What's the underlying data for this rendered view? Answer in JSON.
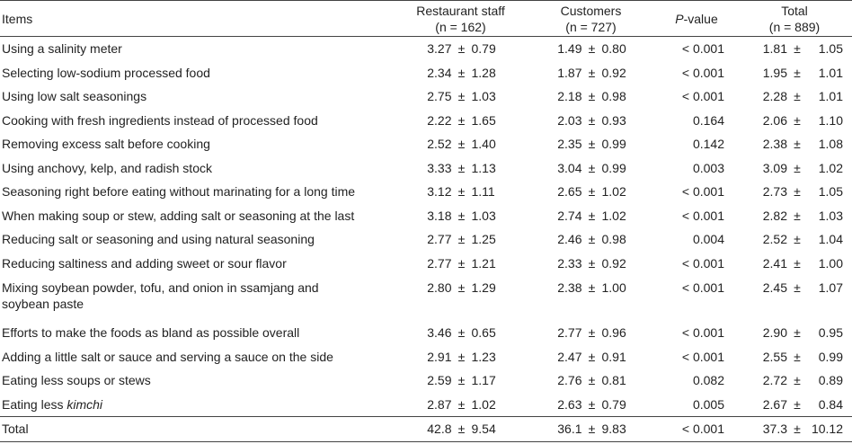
{
  "header": {
    "items": "Items",
    "staff_line1": "Restaurant staff",
    "staff_line2": "(n = 162)",
    "cust_line1": "Customers",
    "cust_line2": "(n = 727)",
    "p_label": "P",
    "p_suffix": "-value",
    "total_line1": "Total",
    "total_line2": "(n = 889)"
  },
  "pm": "±",
  "rows": [
    {
      "item": "Using a salinity meter",
      "staff_m": "3.27",
      "staff_s": "0.79",
      "cust_m": "1.49",
      "cust_s": "0.80",
      "p": "< 0.001",
      "tot_m": "1.81",
      "tot_s": "1.05"
    },
    {
      "item": "Selecting low-sodium processed food",
      "staff_m": "2.34",
      "staff_s": "1.28",
      "cust_m": "1.87",
      "cust_s": "0.92",
      "p": "< 0.001",
      "tot_m": "1.95",
      "tot_s": "1.01"
    },
    {
      "item": "Using low salt seasonings",
      "staff_m": "2.75",
      "staff_s": "1.03",
      "cust_m": "2.18",
      "cust_s": "0.98",
      "p": "< 0.001",
      "tot_m": "2.28",
      "tot_s": "1.01"
    },
    {
      "item": "Cooking with fresh ingredients instead of processed food",
      "staff_m": "2.22",
      "staff_s": "1.65",
      "cust_m": "2.03",
      "cust_s": "0.93",
      "p": "0.164",
      "tot_m": "2.06",
      "tot_s": "1.10"
    },
    {
      "item": "Removing excess salt before cooking",
      "staff_m": "2.52",
      "staff_s": "1.40",
      "cust_m": "2.35",
      "cust_s": "0.99",
      "p": "0.142",
      "tot_m": "2.38",
      "tot_s": "1.08"
    },
    {
      "item": "Using anchovy, kelp, and radish stock",
      "staff_m": "3.33",
      "staff_s": "1.13",
      "cust_m": "3.04",
      "cust_s": "0.99",
      "p": "0.003",
      "tot_m": "3.09",
      "tot_s": "1.02"
    },
    {
      "item": "Seasoning right before eating without marinating for a long time",
      "staff_m": "3.12",
      "staff_s": "1.11",
      "cust_m": "2.65",
      "cust_s": "1.02",
      "p": "< 0.001",
      "tot_m": "2.73",
      "tot_s": "1.05"
    },
    {
      "item": "When making soup or stew, adding salt or seasoning at the last",
      "staff_m": "3.18",
      "staff_s": "1.03",
      "cust_m": "2.74",
      "cust_s": "1.02",
      "p": "< 0.001",
      "tot_m": "2.82",
      "tot_s": "1.03"
    },
    {
      "item": "Reducing salt or seasoning and using natural seasoning",
      "staff_m": "2.77",
      "staff_s": "1.25",
      "cust_m": "2.46",
      "cust_s": "0.98",
      "p": "0.004",
      "tot_m": "2.52",
      "tot_s": "1.04"
    },
    {
      "item": "Reducing saltiness and adding sweet or sour flavor",
      "staff_m": "2.77",
      "staff_s": "1.21",
      "cust_m": "2.33",
      "cust_s": "0.92",
      "p": "< 0.001",
      "tot_m": "2.41",
      "tot_s": "1.00"
    },
    {
      "item_line1": "Mixing soybean powder, tofu, and onion in ssamjang and",
      "item_line2": "soybean paste",
      "staff_m": "2.80",
      "staff_s": "1.29",
      "cust_m": "2.38",
      "cust_s": "1.00",
      "p": "< 0.001",
      "tot_m": "2.45",
      "tot_s": "1.07"
    },
    {
      "item": "Efforts to make the foods as bland as possible overall",
      "staff_m": "3.46",
      "staff_s": "0.65",
      "cust_m": "2.77",
      "cust_s": "0.96",
      "p": "< 0.001",
      "tot_m": "2.90",
      "tot_s": "0.95"
    },
    {
      "item": "Adding a little salt or sauce and serving a sauce on the side",
      "staff_m": "2.91",
      "staff_s": "1.23",
      "cust_m": "2.47",
      "cust_s": "0.91",
      "p": "< 0.001",
      "tot_m": "2.55",
      "tot_s": "0.99"
    },
    {
      "item": "Eating less soups or stews",
      "staff_m": "2.59",
      "staff_s": "1.17",
      "cust_m": "2.76",
      "cust_s": "0.81",
      "p": "0.082",
      "tot_m": "2.72",
      "tot_s": "0.89"
    },
    {
      "item_plain": "Eating less ",
      "item_italic": "kimchi",
      "staff_m": "2.87",
      "staff_s": "1.02",
      "cust_m": "2.63",
      "cust_s": "0.79",
      "p": "0.005",
      "tot_m": "2.67",
      "tot_s": "0.84"
    }
  ],
  "total": {
    "item": "Total",
    "staff_m": "42.8",
    "staff_s": "9.54",
    "cust_m": "36.1",
    "cust_s": "9.83",
    "p": "< 0.001",
    "tot_m": "37.3",
    "tot_s": "10.12"
  }
}
